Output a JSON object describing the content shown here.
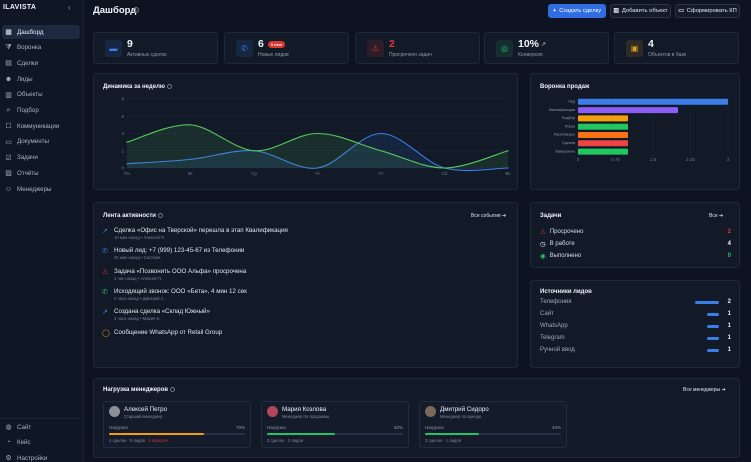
{
  "app": {
    "brand": "ILAVISTA",
    "collapse_glyph": "‹"
  },
  "sidebar": {
    "items": [
      {
        "label": "Дашборд",
        "icon": "dashboard-icon",
        "glyph": "▦"
      },
      {
        "label": "Воронка",
        "icon": "funnel-icon",
        "glyph": "⧩"
      },
      {
        "label": "Сделки",
        "icon": "deals-icon",
        "glyph": "▤"
      },
      {
        "label": "Лиды",
        "icon": "users-icon",
        "glyph": "☻"
      },
      {
        "label": "Объекты",
        "icon": "building-icon",
        "glyph": "▥"
      },
      {
        "label": "Подбор",
        "icon": "search-icon",
        "glyph": "⌕"
      },
      {
        "label": "Коммуникации",
        "icon": "chat-icon",
        "glyph": "☐"
      },
      {
        "label": "Документы",
        "icon": "document-icon",
        "glyph": "▭"
      },
      {
        "label": "Задачи",
        "icon": "tasks-icon",
        "glyph": "☑"
      },
      {
        "label": "Отчёты",
        "icon": "report-icon",
        "glyph": "▨"
      },
      {
        "label": "Менеджеры",
        "icon": "team-icon",
        "glyph": "☺"
      }
    ],
    "bottom": [
      {
        "label": "Сайт",
        "icon": "globe-icon",
        "glyph": "◍"
      },
      {
        "label": "Кейс",
        "icon": "case-icon",
        "glyph": "◔"
      },
      {
        "label": "Настройки",
        "icon": "gear-icon",
        "glyph": "⚙"
      }
    ]
  },
  "header": {
    "title": "Дашборд",
    "help": "?",
    "buttons": {
      "create_deal": "Создать сделку",
      "add_object": "Добавить объект",
      "make_offer": "Сформировать КП"
    }
  },
  "stats": [
    {
      "value": "9",
      "label": "Активных сделок",
      "icon": "folder-icon",
      "glyph": "▬",
      "color": "#3b7de9"
    },
    {
      "value": "6",
      "label": "Новых лидов",
      "badge": "0 new",
      "icon": "phone-icon",
      "glyph": "✆",
      "color": "#3b7de9"
    },
    {
      "value": "2",
      "label": "Просрочено задач",
      "icon": "warning-icon",
      "glyph": "⚠",
      "color": "#e0352f"
    },
    {
      "value": "10%",
      "trend": "↗",
      "label": "Конверсия",
      "icon": "target-icon",
      "glyph": "◎",
      "color": "#2fbf71"
    },
    {
      "value": "4",
      "label": "Объектов в базе",
      "icon": "lock-icon",
      "glyph": "▣",
      "color": "#e5a11b"
    }
  ],
  "weekly": {
    "title": "Динамика за неделю"
  },
  "funnel_title": "Воронка продаж",
  "chart_data": [
    {
      "type": "line",
      "categories": [
        "Пн",
        "Вт",
        "Ср",
        "Чт",
        "Пт",
        "Сб",
        "Вс"
      ],
      "yticks": [
        "0",
        "2",
        "4",
        "6",
        "8"
      ],
      "ylim": [
        0,
        8
      ],
      "series": [
        {
          "color": "#3b7de9",
          "values": [
            0.5,
            1,
            2,
            0,
            4,
            0,
            0
          ]
        },
        {
          "color": "#5ac85a",
          "values": [
            3,
            5,
            2,
            4,
            2,
            0,
            2
          ]
        }
      ]
    },
    {
      "type": "bar",
      "orientation": "horizontal",
      "categories": [
        "Лид",
        "Квалификация",
        "Подбор",
        "Показ",
        "Переговоры",
        "Сделка",
        "Завершено"
      ],
      "values": [
        3,
        2,
        1,
        1,
        1,
        1,
        1
      ],
      "colors": [
        "#3b7de9",
        "#8b5cf6",
        "#f59e0b",
        "#22c55e",
        "#f97316",
        "#ef4444",
        "#22c55e"
      ],
      "xticks": [
        "0",
        "0.75",
        "1.5",
        "2.25",
        "3"
      ],
      "xlim": [
        0,
        3
      ]
    }
  ],
  "activity": {
    "title": "Лента активности",
    "all_link": "Все события",
    "items": [
      {
        "title": "Сделка «Офис на Тверской» перешла в этап Квалификация",
        "meta": "10 мин назад • Алексей П.",
        "icon": "trend-icon",
        "glyph": "↗",
        "color": "#3b7de9"
      },
      {
        "title": "Новый лид: +7 (999) 123-45-67 из Телефонии",
        "meta": "25 мин назад • Система",
        "icon": "phone-icon",
        "glyph": "✆",
        "color": "#3b7de9"
      },
      {
        "title": "Задача «Позвонить ООО Альфа» просрочена",
        "meta": "1 час назад • Алексей П.",
        "icon": "warning-icon",
        "glyph": "⚠",
        "color": "#e0352f"
      },
      {
        "title": "Исходящий звонок: ООО «Бета», 4 мин 12 сек",
        "meta": "2 часа назад • Дмитрий С.",
        "icon": "call-icon",
        "glyph": "✆",
        "color": "#2fbf71"
      },
      {
        "title": "Создана сделка «Склад Южный»",
        "meta": "3 часа назад • Мария К.",
        "icon": "trend-icon",
        "glyph": "↗",
        "color": "#3b7de9"
      },
      {
        "title": "Сообщение WhatsApp от Retail Group",
        "meta": "",
        "icon": "message-icon",
        "glyph": "◯",
        "color": "#f59e0b"
      }
    ]
  },
  "tasks": {
    "title": "Задачи",
    "all_link": "Все",
    "items": [
      {
        "label": "Просрочено",
        "value": "2",
        "color": "#e0352f",
        "icon": "warning-icon",
        "glyph": "⚠"
      },
      {
        "label": "В работе",
        "value": "4",
        "color": "#f2f5fa",
        "icon": "clock-icon",
        "glyph": "◷"
      },
      {
        "label": "Выполнено",
        "value": "0",
        "color": "#2fbf71",
        "icon": "check-icon",
        "glyph": "◉"
      }
    ]
  },
  "sources": {
    "title": "Источники лидов",
    "items": [
      {
        "label": "Телефония",
        "value": "2",
        "share": 1
      },
      {
        "label": "Сайт",
        "value": "1",
        "share": 0.5
      },
      {
        "label": "WhatsApp",
        "value": "1",
        "share": 0.5
      },
      {
        "label": "Telegram",
        "value": "1",
        "share": 0.5
      },
      {
        "label": "Ручной ввод",
        "value": "1",
        "share": 0.5
      }
    ]
  },
  "managers": {
    "title": "Нагрузка менеджеров",
    "all_link": "Все менеджеры",
    "load_label": "Нагрузка",
    "items": [
      {
        "name": "Алексей Петро",
        "role": "Старший менеджер",
        "pct": "70%",
        "load": 0.7,
        "color": "#f59e0b",
        "avatar": "#8a8f99",
        "deals": "4 сделок",
        "leads": "5 лидов",
        "overdue": "2 просроч."
      },
      {
        "name": "Мария Козлова",
        "role": "Менеджер по продажам",
        "pct": "50%",
        "load": 0.5,
        "color": "#22c55e",
        "avatar": "#b0475b",
        "deals": "3 сделок",
        "leads": "2 лидов",
        "overdue": ""
      },
      {
        "name": "Дмитрий Сидоро",
        "role": "Менеджер по аренде",
        "pct": "40%",
        "load": 0.4,
        "color": "#22c55e",
        "avatar": "#7b6a58",
        "deals": "3 сделок",
        "leads": "1 лидов",
        "overdue": ""
      }
    ]
  }
}
